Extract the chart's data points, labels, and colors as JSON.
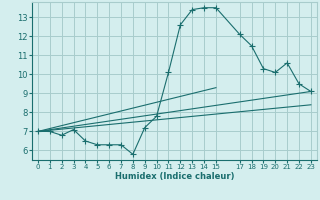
{
  "xlabel": "Humidex (Indice chaleur)",
  "bg_color": "#d4eeee",
  "grid_color": "#a8cccc",
  "line_color": "#1a6e6e",
  "xlim": [
    -0.5,
    23.5
  ],
  "ylim": [
    5.5,
    13.8
  ],
  "yticks": [
    6,
    7,
    8,
    9,
    10,
    11,
    12,
    13
  ],
  "xticks": [
    0,
    1,
    2,
    3,
    4,
    5,
    6,
    7,
    8,
    9,
    10,
    11,
    12,
    13,
    14,
    15,
    17,
    18,
    19,
    20,
    21,
    22,
    23
  ],
  "xtick_labels": [
    "0",
    "1",
    "2",
    "3",
    "4",
    "5",
    "6",
    "7",
    "8",
    "9",
    "10",
    "11",
    "12",
    "13",
    "14",
    "15",
    "17",
    "18",
    "19",
    "20",
    "21",
    "22",
    "23"
  ],
  "line1_x": [
    0,
    1,
    2,
    3,
    4,
    5,
    6,
    7,
    8,
    9,
    10,
    11,
    12,
    13,
    14,
    15,
    17,
    18,
    19,
    20,
    21,
    22,
    23
  ],
  "line1_y": [
    7.0,
    7.0,
    6.8,
    7.1,
    6.5,
    6.3,
    6.3,
    6.3,
    5.8,
    7.2,
    7.8,
    10.1,
    12.6,
    13.4,
    13.5,
    13.5,
    12.1,
    11.5,
    10.3,
    10.1,
    10.6,
    9.5,
    9.1
  ],
  "line2_x": [
    0,
    23
  ],
  "line2_y": [
    7.0,
    9.1
  ],
  "line3_x": [
    0,
    15
  ],
  "line3_y": [
    7.0,
    9.3
  ],
  "line4_x": [
    0,
    23
  ],
  "line4_y": [
    7.0,
    8.4
  ]
}
